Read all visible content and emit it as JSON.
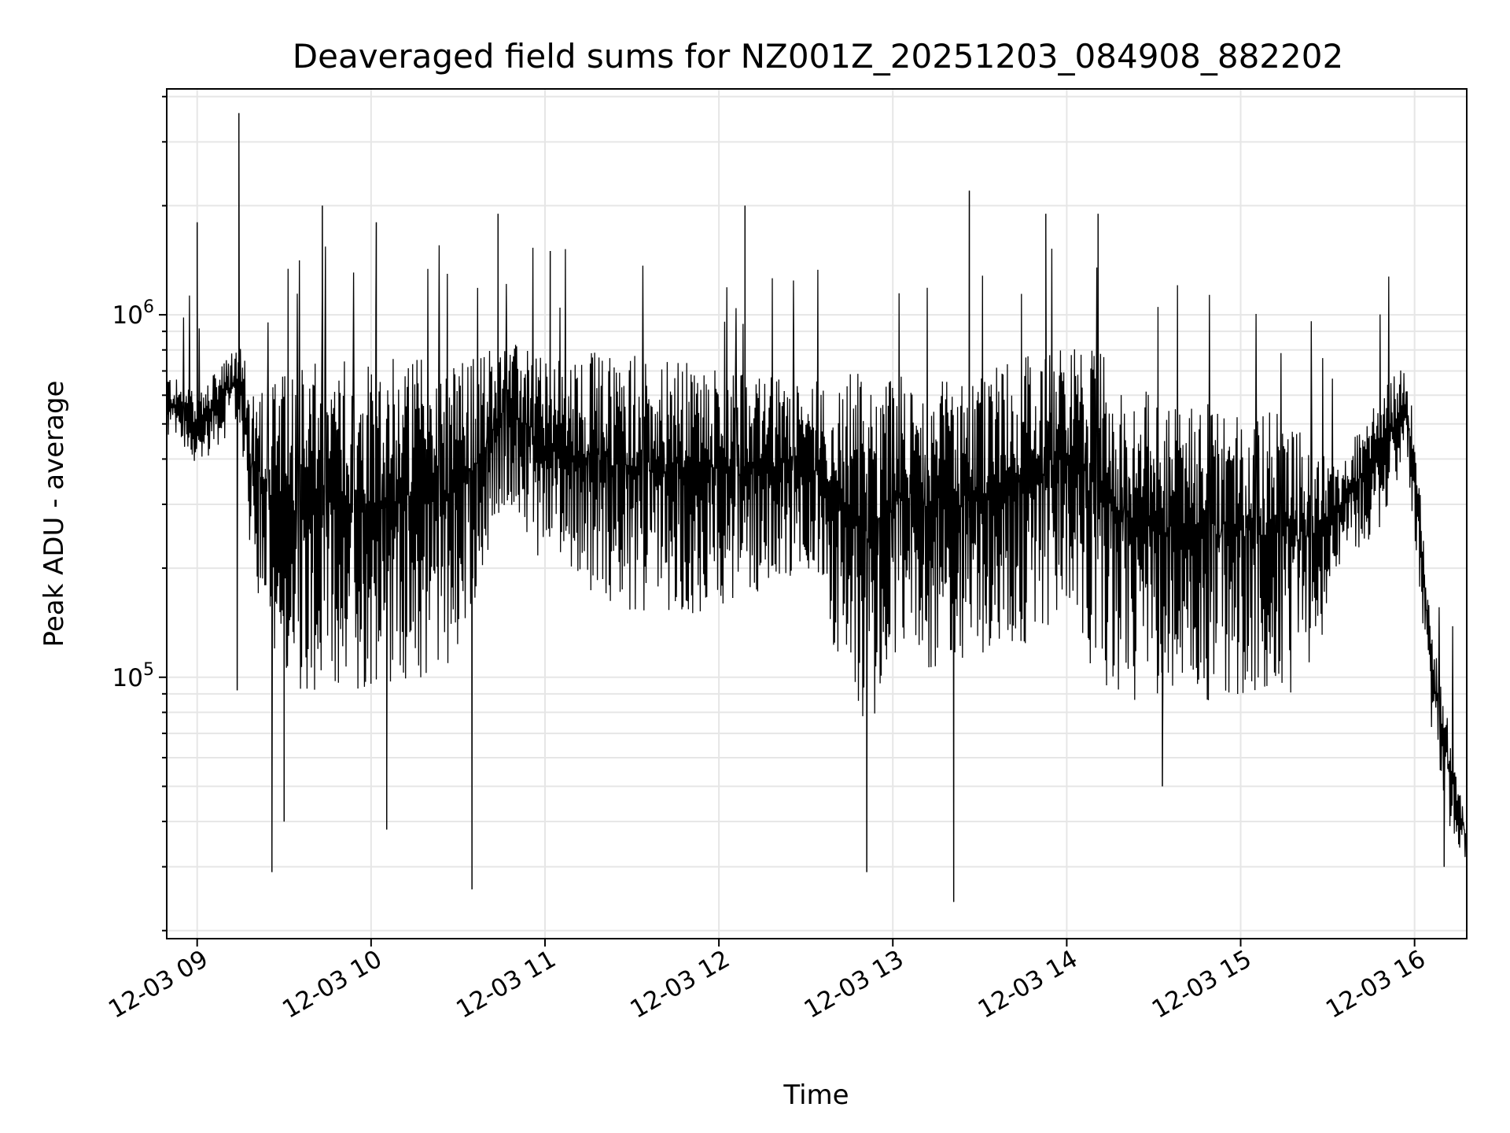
{
  "chart_data": {
    "type": "line",
    "title": "Deaveraged field sums for NZ001Z_20251203_084908_882202",
    "xlabel": "Time",
    "ylabel": "Peak ADU - average",
    "yscale": "log",
    "ylim": [
      19000,
      4200000
    ],
    "xlim_hours": [
      8.825,
      16.3
    ],
    "grid": true,
    "x_ticks": [
      {
        "hour": 9,
        "label": "12-03 09"
      },
      {
        "hour": 10,
        "label": "12-03 10"
      },
      {
        "hour": 11,
        "label": "12-03 11"
      },
      {
        "hour": 12,
        "label": "12-03 12"
      },
      {
        "hour": 13,
        "label": "12-03 13"
      },
      {
        "hour": 14,
        "label": "12-03 14"
      },
      {
        "hour": 15,
        "label": "12-03 15"
      },
      {
        "hour": 16,
        "label": "12-03 16"
      }
    ],
    "y_major_ticks": [
      {
        "value": 100000,
        "base": "10",
        "exp": "5"
      },
      {
        "value": 1000000,
        "base": "10",
        "exp": "6"
      }
    ],
    "series": [
      {
        "name": "Peak ADU - average",
        "color": "#000000",
        "envelope_hours": [
          8.825,
          9.0,
          9.25,
          9.3,
          9.5,
          10.0,
          10.5,
          10.75,
          11.0,
          11.5,
          12.0,
          12.5,
          12.85,
          13.0,
          13.35,
          13.8,
          14.0,
          14.2,
          14.5,
          15.0,
          15.4,
          15.55,
          15.8,
          15.95,
          16.0,
          16.1,
          16.2,
          16.3
        ],
        "envelope_high": [
          700000,
          600000,
          850000,
          650000,
          700000,
          800000,
          750000,
          850000,
          800000,
          780000,
          720000,
          650000,
          720000,
          700000,
          650000,
          800000,
          850000,
          780000,
          600000,
          550000,
          520000,
          380000,
          600000,
          750000,
          500000,
          130000,
          75000,
          40000
        ],
        "envelope_low": [
          450000,
          380000,
          500000,
          200000,
          90000,
          90000,
          100000,
          300000,
          200000,
          150000,
          150000,
          200000,
          60000,
          100000,
          110000,
          120000,
          150000,
          90000,
          80000,
          90000,
          90000,
          200000,
          250000,
          400000,
          250000,
          70000,
          38000,
          30000
        ],
        "spikes": [
          {
            "hour": 9.0,
            "value": 1800000
          },
          {
            "hour": 9.24,
            "value": 3600000
          },
          {
            "hour": 9.23,
            "value": 92000
          },
          {
            "hour": 9.43,
            "value": 29000
          },
          {
            "hour": 9.5,
            "value": 40000
          },
          {
            "hour": 9.72,
            "value": 2000000
          },
          {
            "hour": 10.03,
            "value": 1800000
          },
          {
            "hour": 10.09,
            "value": 38000
          },
          {
            "hour": 10.58,
            "value": 26000
          },
          {
            "hour": 10.73,
            "value": 1900000
          },
          {
            "hour": 11.03,
            "value": 1500000
          },
          {
            "hour": 12.15,
            "value": 2000000
          },
          {
            "hour": 12.85,
            "value": 29000
          },
          {
            "hour": 13.35,
            "value": 24000
          },
          {
            "hour": 13.44,
            "value": 2200000
          },
          {
            "hour": 13.88,
            "value": 1900000
          },
          {
            "hour": 14.18,
            "value": 1900000
          },
          {
            "hour": 14.55,
            "value": 50000
          },
          {
            "hour": 16.17,
            "value": 30000
          }
        ]
      }
    ]
  }
}
